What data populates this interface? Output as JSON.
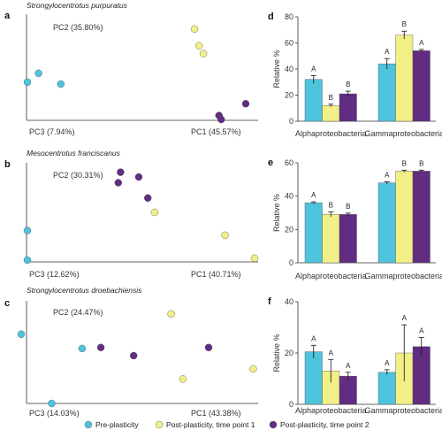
{
  "colors": {
    "pre": "#4ec3dc",
    "tp1": "#f1ef86",
    "tp2": "#612c82",
    "stroke": "#555555",
    "axis": "#333333"
  },
  "legend": [
    {
      "label": "Pre-plasticity",
      "color": "#4ec3dc"
    },
    {
      "label": "Post-plasticity, time point 1",
      "color": "#f1ef86"
    },
    {
      "label": "Post-plasticity, time point 2",
      "color": "#612c82"
    }
  ],
  "chart_data": [
    {
      "type": "scatter",
      "panel": "a",
      "title": "Strongylocentrotus purpuratus",
      "axis_labels": {
        "pc2": "PC2 (35.80%)",
        "pc3": "PC3 (7.94%)",
        "pc1": "PC1 (45.57%)"
      },
      "series": [
        {
          "color": "#4ec3dc",
          "points": [
            [
              0.0,
              0.38
            ],
            [
              0.05,
              0.47
            ],
            [
              0.15,
              0.36
            ]
          ]
        },
        {
          "color": "#f1ef86",
          "points": [
            [
              0.75,
              0.92
            ],
            [
              0.77,
              0.75
            ],
            [
              0.79,
              0.67
            ]
          ]
        },
        {
          "color": "#612c82",
          "points": [
            [
              0.86,
              0.04
            ],
            [
              0.87,
              0.0
            ],
            [
              0.98,
              0.16
            ]
          ]
        }
      ]
    },
    {
      "type": "scatter",
      "panel": "b",
      "title": "Mesocentrotus franciscanus",
      "axis_labels": {
        "pc2": "PC2 (30.31%)",
        "pc3": "PC3 (12.62%)",
        "pc1": "PC1 (40.71%)"
      },
      "series": [
        {
          "color": "#4ec3dc",
          "points": [
            [
              0.0,
              0.31
            ],
            [
              0.0,
              0.0
            ]
          ]
        },
        {
          "color": "#f1ef86",
          "points": [
            [
              0.56,
              0.5
            ],
            [
              0.87,
              0.26
            ],
            [
              1.0,
              0.02
            ]
          ]
        },
        {
          "color": "#612c82",
          "points": [
            [
              0.41,
              0.92
            ],
            [
              0.4,
              0.81
            ],
            [
              0.49,
              0.87
            ],
            [
              0.53,
              0.65
            ]
          ]
        }
      ]
    },
    {
      "type": "scatter",
      "panel": "c",
      "title": "Strongylocentrotus droebachiensis",
      "axis_labels": {
        "pc2": "PC2 (24.47%)",
        "pc3": "PC3 (14.03%)",
        "pc1": "PC1 (43.38%)"
      },
      "series": [
        {
          "color": "#4ec3dc",
          "points": [
            [
              0.0,
              0.68
            ],
            [
              0.13,
              0.0
            ],
            [
              0.26,
              0.54
            ]
          ]
        },
        {
          "color": "#f1ef86",
          "points": [
            [
              0.64,
              0.88
            ],
            [
              0.69,
              0.24
            ],
            [
              0.99,
              0.34
            ]
          ]
        },
        {
          "color": "#612c82",
          "points": [
            [
              0.34,
              0.55
            ],
            [
              0.48,
              0.47
            ],
            [
              0.8,
              0.55
            ]
          ]
        }
      ]
    },
    {
      "type": "bar",
      "panel": "d",
      "ylabel": "Relative %",
      "ylim": [
        0,
        80
      ],
      "yticks": [
        0,
        20,
        40,
        60,
        80
      ],
      "groups": [
        {
          "category": "Alphaproteobacteria",
          "values": [
            32,
            12,
            21
          ],
          "errors": [
            3,
            1,
            2
          ],
          "letters": [
            "A",
            "B",
            "B"
          ]
        },
        {
          "category": "Gammaproteobacteria",
          "values": [
            44,
            66,
            54
          ],
          "errors": [
            4,
            3,
            1
          ],
          "letters": [
            "A",
            "B",
            "A"
          ]
        }
      ]
    },
    {
      "type": "bar",
      "panel": "e",
      "ylabel": "Relative %",
      "ylim": [
        0,
        60
      ],
      "yticks": [
        0,
        20,
        40,
        60
      ],
      "groups": [
        {
          "category": "Alphaproteobacteria",
          "values": [
            36,
            29,
            29
          ],
          "errors": [
            0.6,
            1.5,
            0.8
          ],
          "letters": [
            "A",
            "B",
            "B"
          ]
        },
        {
          "category": "Gammaproteobacteria",
          "values": [
            48,
            55,
            55
          ],
          "errors": [
            0.6,
            0.6,
            0.6
          ],
          "letters": [
            "A",
            "B",
            "B"
          ]
        }
      ]
    },
    {
      "type": "bar",
      "panel": "f",
      "ylabel": "Relative %",
      "ylim": [
        0,
        40
      ],
      "yticks": [
        0,
        20,
        40
      ],
      "groups": [
        {
          "category": "Alphaproteobacteria",
          "values": [
            20.5,
            13,
            11
          ],
          "errors": [
            2.5,
            4.5,
            1.5
          ],
          "letters": [
            "A",
            "A",
            "A"
          ]
        },
        {
          "category": "Gammaproteobacteria",
          "values": [
            12.5,
            20,
            22.5
          ],
          "errors": [
            1,
            11,
            3.5
          ],
          "letters": [
            "A",
            "A",
            "A"
          ]
        }
      ]
    }
  ]
}
